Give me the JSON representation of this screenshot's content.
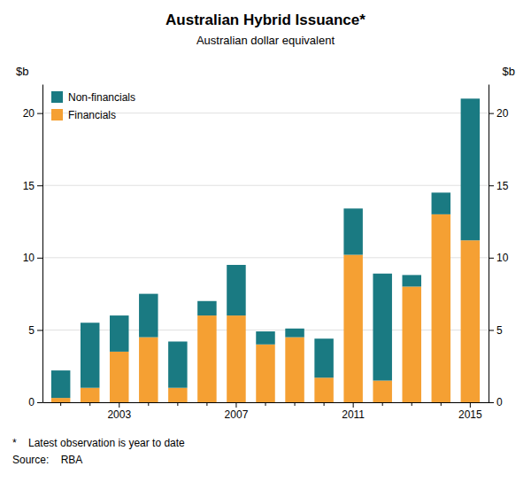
{
  "chart_data": {
    "type": "bar",
    "stacked": true,
    "title": "Australian Hybrid Issuance*",
    "subtitle": "Australian dollar equivalent",
    "y_label": "$b",
    "y2_label": "$b",
    "annotations": [
      "*    Latest observation is year to date",
      "Source:    RBA"
    ],
    "categories": [
      null,
      null,
      "2003",
      null,
      null,
      null,
      "2007",
      null,
      null,
      null,
      "2011",
      null,
      null,
      null,
      "2015"
    ],
    "series": [
      {
        "name": "Financials",
        "color": "#f5a033",
        "values": [
          0.3,
          1.0,
          3.5,
          4.5,
          1.0,
          6.0,
          6.0,
          4.0,
          4.5,
          1.7,
          10.2,
          1.5,
          8.0,
          13.0,
          11.2
        ]
      },
      {
        "name": "Non-financials",
        "color": "#1a7a82",
        "values": [
          1.9,
          4.5,
          2.5,
          3.0,
          3.2,
          1.0,
          3.5,
          0.9,
          0.6,
          2.7,
          3.2,
          7.4,
          0.8,
          1.5,
          9.8
        ]
      }
    ],
    "ylim": [
      0,
      22
    ],
    "yticks": [
      0,
      5,
      10,
      15,
      20
    ],
    "y2lim": [
      0,
      22
    ],
    "y2ticks": [
      0,
      5,
      10,
      15,
      20
    ],
    "grid": true,
    "legend": "upper left"
  }
}
